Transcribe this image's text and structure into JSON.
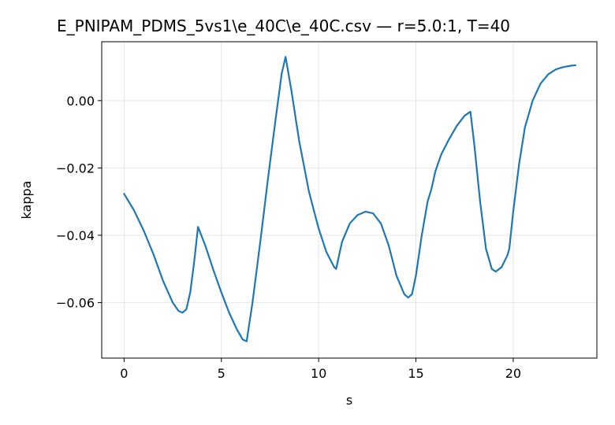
{
  "chart_data": {
    "type": "line",
    "title": "E_PNIPAM_PDMS_5vs1\\e_40C\\e_40C.csv — r=5.0:1, T=40",
    "xlabel": "s",
    "ylabel": "kappa",
    "xlim": [
      -1.15,
      24.3
    ],
    "ylim": [
      -0.0765,
      0.0175
    ],
    "xticks": [
      0,
      5,
      10,
      15,
      20
    ],
    "xtick_labels": [
      "0",
      "5",
      "10",
      "15",
      "20"
    ],
    "yticks": [
      0.0,
      -0.02,
      -0.04,
      -0.06
    ],
    "ytick_labels": [
      "0.00",
      "−0.02",
      "−0.04",
      "−0.06"
    ],
    "grid": true,
    "legend": "none",
    "series": [
      {
        "color": "#1f77b4",
        "x": [
          0.0,
          0.5,
          1.0,
          1.5,
          2.0,
          2.5,
          2.8,
          3.0,
          3.2,
          3.4,
          3.6,
          3.8,
          4.2,
          4.6,
          5.0,
          5.4,
          5.8,
          6.1,
          6.3,
          6.6,
          7.0,
          7.4,
          7.8,
          8.1,
          8.3,
          8.6,
          9.0,
          9.5,
          10.0,
          10.4,
          10.8,
          10.9,
          11.2,
          11.6,
          12.0,
          12.4,
          12.8,
          13.2,
          13.6,
          14.0,
          14.4,
          14.6,
          14.8,
          15.0,
          15.3,
          15.6,
          15.8,
          16.0,
          16.3,
          16.7,
          17.1,
          17.5,
          17.8,
          18.0,
          18.3,
          18.6,
          18.9,
          19.1,
          19.4,
          19.7,
          19.8,
          20.0,
          20.3,
          20.6,
          21.0,
          21.4,
          21.8,
          22.2,
          22.6,
          23.0,
          23.2
        ],
        "y": [
          -0.0277,
          -0.0325,
          -0.0385,
          -0.0455,
          -0.0535,
          -0.06,
          -0.0625,
          -0.063,
          -0.062,
          -0.057,
          -0.048,
          -0.0375,
          -0.0435,
          -0.0505,
          -0.057,
          -0.063,
          -0.068,
          -0.071,
          -0.0715,
          -0.06,
          -0.042,
          -0.023,
          -0.005,
          0.008,
          0.013,
          0.003,
          -0.012,
          -0.027,
          -0.038,
          -0.045,
          -0.0495,
          -0.05,
          -0.042,
          -0.0365,
          -0.034,
          -0.033,
          -0.0335,
          -0.0365,
          -0.043,
          -0.052,
          -0.0575,
          -0.0585,
          -0.0575,
          -0.052,
          -0.04,
          -0.03,
          -0.0262,
          -0.021,
          -0.016,
          -0.0115,
          -0.0075,
          -0.0045,
          -0.0033,
          -0.013,
          -0.03,
          -0.044,
          -0.05,
          -0.0508,
          -0.0495,
          -0.046,
          -0.044,
          -0.033,
          -0.019,
          -0.008,
          0.0,
          0.005,
          0.0078,
          0.0093,
          0.01,
          0.0104,
          0.0105
        ]
      }
    ]
  }
}
